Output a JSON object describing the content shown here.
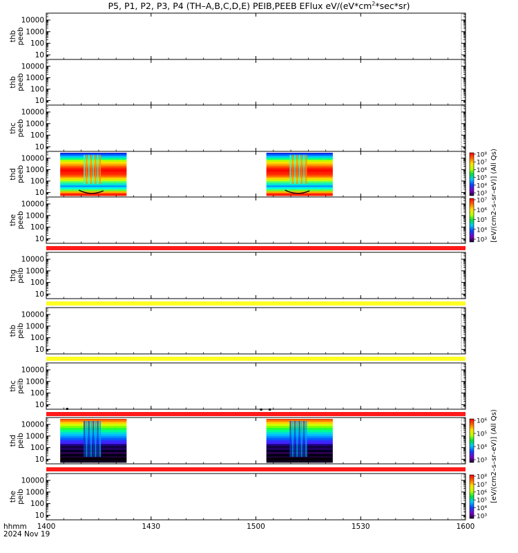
{
  "title_parts": [
    "P5, P1, P2, P3, P4 (TH–A,B,C,D,E) PEIB,PEEB EFlux eV/(eV*cm",
    "2",
    "*sec*sr)"
  ],
  "time_axis": {
    "label_hhmm": "hhmm",
    "label_date": "2024 Nov 19",
    "ticks": [
      {
        "t": 0,
        "label": "1400"
      },
      {
        "t": 30,
        "label": "1430"
      },
      {
        "t": 60,
        "label": "1500"
      },
      {
        "t": 90,
        "label": "1530"
      },
      {
        "t": 120,
        "label": "1600"
      }
    ],
    "range_minutes": [
      0,
      120
    ]
  },
  "colors": {
    "red_bar": "#ff1a1a",
    "yellow_bar": "#ffff22",
    "axis": "#000000"
  },
  "chart_data": [
    {
      "type": "heatmap",
      "probe": "thd",
      "product": "peeb",
      "ylabel": [
        "thd",
        "peeb"
      ],
      "ylim": [
        7,
        30000
      ],
      "yscale": "log",
      "yticks": [
        "10000",
        "1000",
        "100",
        "10"
      ],
      "data_intervals_minutes": [
        [
          4,
          23
        ],
        [
          63,
          82
        ]
      ],
      "colorbar": {
        "labels": [
          "10⁸",
          "10⁷",
          "10⁶",
          "10⁵",
          "10⁴",
          "10³"
        ],
        "title": "[eV/(cm2–s–sr–eV)] (All Qs)"
      }
    },
    {
      "type": "heatmap",
      "probe": "thd",
      "product": "peib",
      "ylabel": [
        "thd",
        "peib"
      ],
      "ylim": [
        7,
        30000
      ],
      "yscale": "log",
      "yticks": [
        "10000",
        "1000",
        "100",
        "10"
      ],
      "data_intervals_minutes": [
        [
          4,
          23
        ],
        [
          63,
          82
        ]
      ],
      "colorbar": {
        "labels": [
          "10⁶",
          "10⁵",
          "10⁴",
          "10³"
        ],
        "title": "[eV/(cm2–s–sr–eV)] (All Qs)"
      }
    }
  ],
  "panels": [
    {
      "ylabel": [
        "thb",
        "peeb"
      ],
      "yticks": [
        "10000",
        "1000",
        "100",
        "10"
      ],
      "data": false,
      "bar": ""
    },
    {
      "ylabel": [
        "thb",
        "peeb"
      ],
      "yticks": [
        "10000",
        "1000",
        "100",
        "10"
      ],
      "data": false,
      "bar": ""
    },
    {
      "ylabel": [
        "thc",
        "peeb"
      ],
      "yticks": [
        "10000",
        "1000",
        "100",
        "10"
      ],
      "data": false,
      "bar": ""
    },
    {
      "ylabel": [
        "thd",
        "peeb"
      ],
      "yticks": [
        "10000",
        "1000",
        "100",
        "10"
      ],
      "data": true,
      "kind": "electron",
      "bar": ""
    },
    {
      "ylabel": [
        "the",
        "peeb"
      ],
      "yticks": [
        "10000",
        "1000",
        "100",
        "10"
      ],
      "data": false,
      "bar": "red"
    },
    {
      "ylabel": [
        "thg",
        "peib"
      ],
      "yticks": [
        "10000",
        "1000",
        "100",
        "10"
      ],
      "data": false,
      "bar": "yellow"
    },
    {
      "ylabel": [
        "thb",
        "peib"
      ],
      "yticks": [
        "10000",
        "1000",
        "100",
        "10"
      ],
      "data": false,
      "bar": "yellow"
    },
    {
      "ylabel": [
        "thc",
        "peib"
      ],
      "yticks": [
        "10000",
        "1000",
        "100",
        "10"
      ],
      "data": false,
      "bar": "red"
    },
    {
      "ylabel": [
        "thd",
        "peib"
      ],
      "yticks": [
        "10000",
        "1000",
        "100",
        "10"
      ],
      "data": true,
      "kind": "ion",
      "bar": "red"
    },
    {
      "ylabel": [
        "the",
        "peib"
      ],
      "yticks": [
        "10000",
        "1000",
        "100",
        "10"
      ],
      "data": false,
      "bar": ""
    }
  ],
  "colorbars": [
    {
      "labels": [
        "10⁸",
        "10⁷",
        "10⁶",
        "10⁵",
        "10⁴",
        "10³"
      ]
    },
    {
      "labels": [
        "10⁷",
        "10⁶",
        "10⁵",
        "10⁴",
        "10³"
      ]
    },
    {
      "labels": [
        "10⁶",
        "10⁵",
        "10⁴",
        "10³"
      ]
    },
    {
      "labels": [
        "10⁸",
        "10⁷",
        "10⁶",
        "10⁵",
        "10⁴",
        "10³"
      ]
    }
  ],
  "colorbar_titles": [
    "[eV/(cm2–s–sr–eV)] (All Qs)",
    "[eV/(cm2–s–sr–eV)] (All Qs)"
  ]
}
